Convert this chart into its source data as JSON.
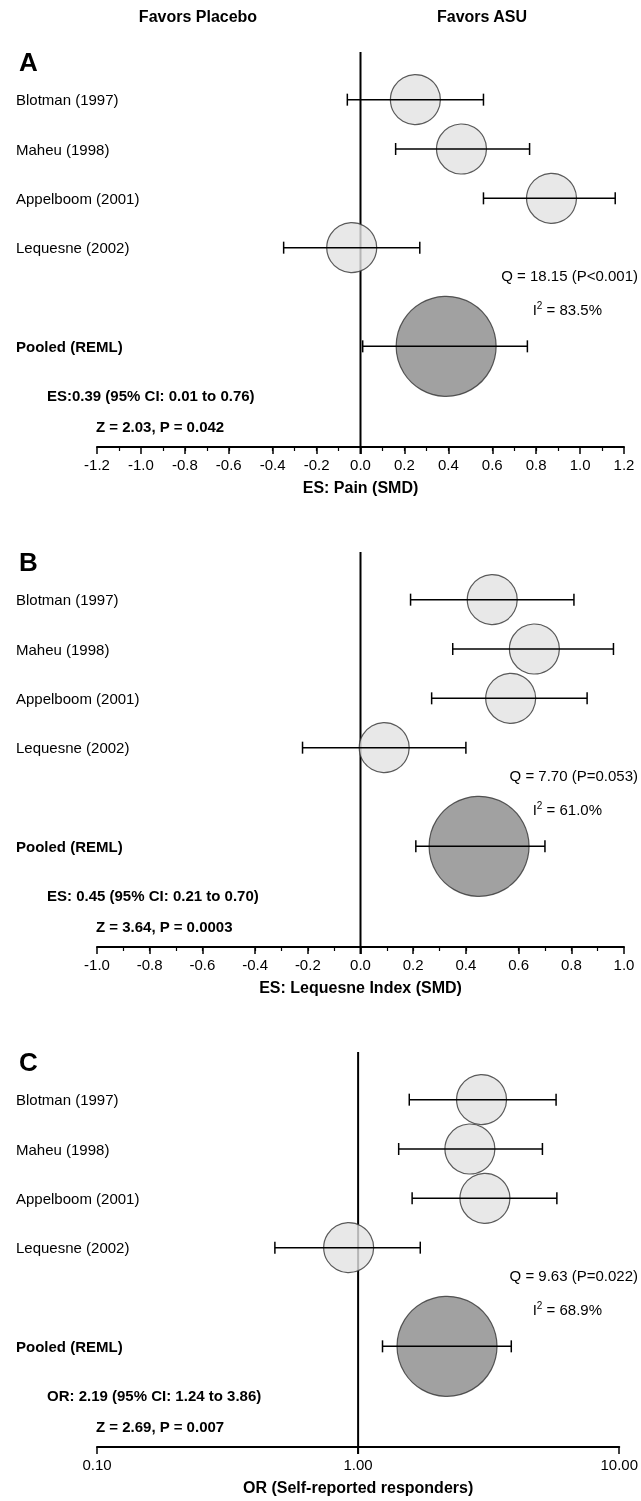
{
  "chart_data": [
    {
      "type": "bubble",
      "orientation": "horizontal",
      "title": "A",
      "xlabel": "ES: Pain (SMD)",
      "categories": [
        "Blotman (1997)",
        "Maheu (1998)",
        "Appelboom (2001)",
        "Lequesne (2002)",
        null,
        "Pooled (REML)"
      ],
      "values": [
        0.25,
        0.46,
        0.87,
        -0.04,
        null,
        0.39
      ],
      "errors": [
        [
          -0.06,
          0.56
        ],
        [
          0.16,
          0.77
        ],
        [
          0.56,
          1.16
        ],
        [
          -0.35,
          0.27
        ],
        null,
        [
          0.01,
          0.76
        ]
      ],
      "sizes": [
        0.25,
        0.25,
        0.25,
        0.25,
        null,
        1
      ],
      "colors": [
        "#e2e2e2",
        "#e2e2e2",
        "#e2e2e2",
        "#e2e2e2",
        null,
        "#8a8a8a"
      ],
      "xlim": [
        -1.2,
        1.2
      ],
      "xticks": [
        -1.2,
        {
          "value": -1,
          "label": "-1.0"
        },
        -0.8,
        -0.6,
        -0.4,
        -0.2,
        {
          "value": 0,
          "label": "0.0"
        },
        0.2,
        0.4,
        0.6,
        0.8,
        {
          "value": 1,
          "label": "1.0"
        },
        1.2
      ],
      "ref_lines": [
        {
          "axis": "x",
          "value": 0,
          "color": "#000000"
        }
      ],
      "annotations": [
        "Favors Placebo",
        "Favors ASU",
        "Q = 18.15 (P<0.001)",
        "I$^{2}$ = 83.5%",
        "ES:0.39 (95% CI: 0.01 to 0.76)",
        "Z = 2.03, P = 0.042"
      ]
    },
    {
      "type": "bubble",
      "orientation": "horizontal",
      "title": "B",
      "xlabel": "ES: Lequesne Index (SMD)",
      "categories": [
        "Blotman (1997)",
        "Maheu (1998)",
        "Appelboom (2001)",
        "Lequesne (2002)",
        null,
        "Pooled (REML)"
      ],
      "values": [
        0.5,
        0.66,
        0.57,
        0.09,
        null,
        0.45
      ],
      "errors": [
        [
          0.19,
          0.81
        ],
        [
          0.35,
          0.96
        ],
        [
          0.27,
          0.86
        ],
        [
          -0.22,
          0.4
        ],
        null,
        [
          0.21,
          0.7
        ]
      ],
      "sizes": [
        0.25,
        0.25,
        0.25,
        0.25,
        null,
        1
      ],
      "colors": [
        "#e2e2e2",
        "#e2e2e2",
        "#e2e2e2",
        "#e2e2e2",
        null,
        "#8a8a8a"
      ],
      "xlim": [
        -1,
        1
      ],
      "xticks": [
        {
          "value": -1,
          "label": "-1.0"
        },
        -0.8,
        -0.6,
        -0.4,
        -0.2,
        {
          "value": 0,
          "label": "0.0"
        },
        0.2,
        0.4,
        0.6,
        0.8,
        {
          "value": 1,
          "label": "1.0"
        }
      ],
      "ref_lines": [
        {
          "axis": "x",
          "value": 0,
          "color": "#000000"
        }
      ],
      "annotations": [
        "Q = 7.70 (P=0.053)",
        "I$^{2}$ = 61.0%",
        "ES: 0.45 (95% CI: 0.21 to 0.70)",
        "Z = 3.64, P = 0.0003"
      ]
    },
    {
      "type": "bubble",
      "orientation": "horizontal",
      "title": "C",
      "xlabel": "OR (Self-reported responders)",
      "log": "x",
      "categories": [
        "Blotman (1997)",
        "Maheu (1998)",
        "Appelboom (2001)",
        "Lequesne (2002)",
        null,
        "Pooled (REML)"
      ],
      "values": [
        2.97,
        2.68,
        3.06,
        0.92,
        null,
        2.19
      ],
      "errors": [
        [
          1.57,
          5.73
        ],
        [
          1.43,
          5.08
        ],
        [
          1.61,
          5.77
        ],
        [
          0.48,
          1.73
        ],
        null,
        [
          1.24,
          3.86
        ]
      ],
      "sizes": [
        0.25,
        0.25,
        0.25,
        0.25,
        null,
        1
      ],
      "colors": [
        "#e2e2e2",
        "#e2e2e2",
        "#e2e2e2",
        "#e2e2e2",
        null,
        "#8a8a8a"
      ],
      "xlim": [
        0.1,
        10
      ],
      "xticks": [
        {
          "value": 0.1,
          "label": "0.10"
        },
        {
          "value": 1,
          "label": "1.00"
        },
        {
          "value": 10,
          "label": "10.00"
        }
      ],
      "ref_lines": [
        {
          "axis": "x",
          "value": 1,
          "color": "#000000"
        }
      ],
      "annotations": [
        "Q = 9.63 (P=0.022)",
        "I$^{2}$ = 68.9%",
        "OR: 2.19 (95% CI: 1.24 to 3.86)",
        "Z = 2.69, P = 0.007"
      ]
    }
  ]
}
